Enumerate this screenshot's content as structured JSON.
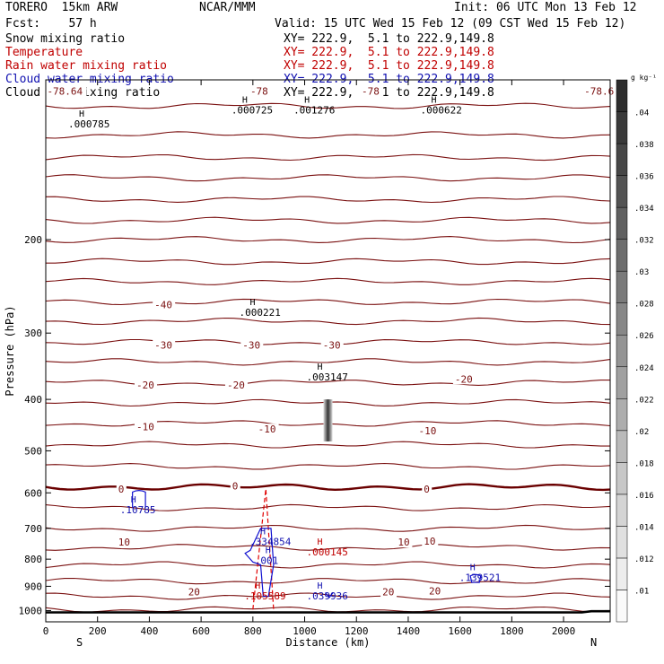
{
  "header": {
    "model": "TORERO  15km ARW",
    "org": "NCAR/MMM",
    "init": "Init: 06 UTC Mon 13 Feb 12",
    "fcst": "Fcst:    57 h",
    "valid": "Valid: 15 UTC Wed 15 Feb 12 (09 CST Wed 15 Feb 12)"
  },
  "legend": [
    {
      "label": "Snow mixing ratio",
      "xy": "XY= 222.9,  5.1 to 222.9,149.8",
      "color": "#000000"
    },
    {
      "label": "Temperature",
      "xy": "XY= 222.9,  5.1 to 222.9,149.8",
      "color": "#c00000"
    },
    {
      "label": "Rain water mixing ratio",
      "xy": "XY= 222.9,  5.1 to 222.9,149.8",
      "color": "#c00000"
    },
    {
      "label": "Cloud water mixing ratio",
      "xy": "XY= 222.9,  5.1 to 222.9,149.8",
      "color": "#1010b0"
    },
    {
      "label": "Cloud ice mixing ratio",
      "xy": "XY= 222.9,  5.1 to 222.9,149.8",
      "color": "#000000"
    }
  ],
  "chart_data": {
    "type": "cross-section",
    "xlabel": "Distance (km)",
    "ylabel": "Pressure (hPa)",
    "xlim": [
      0,
      2180
    ],
    "ylim": [
      1050,
      100
    ],
    "x_ticks": [
      0,
      200,
      400,
      600,
      800,
      1000,
      1200,
      1400,
      1600,
      1800,
      2000
    ],
    "y_ticks": [
      200,
      300,
      400,
      500,
      600,
      700,
      800,
      900,
      1000
    ],
    "endpoints": {
      "left": "S",
      "right": "N"
    },
    "colorbar": {
      "units": "g kg⁻¹",
      "ticks": [
        ".01",
        ".012",
        ".014",
        ".016",
        ".018",
        ".02",
        ".022",
        ".024",
        ".026",
        ".028",
        ".03",
        ".032",
        ".034",
        ".036",
        ".038",
        ".04"
      ]
    },
    "temperature_isotherm_labels": [
      {
        "value": "-78.6",
        "x": 2080,
        "p": 105
      },
      {
        "value": "-78",
        "x": 790,
        "p": 105
      },
      {
        "value": "-78",
        "x": 1220,
        "p": 105
      },
      {
        "value": "-78.64",
        "x": 5,
        "p": 105
      },
      {
        "value": "-40",
        "x": 420,
        "p": 265
      },
      {
        "value": "-30",
        "x": 420,
        "p": 316
      },
      {
        "value": "-30",
        "x": 760,
        "p": 316
      },
      {
        "value": "-30",
        "x": 1070,
        "p": 316
      },
      {
        "value": "-20",
        "x": 350,
        "p": 376
      },
      {
        "value": "-20",
        "x": 700,
        "p": 376
      },
      {
        "value": "-20",
        "x": 1580,
        "p": 366
      },
      {
        "value": "-10",
        "x": 350,
        "p": 450
      },
      {
        "value": "-10",
        "x": 820,
        "p": 455
      },
      {
        "value": "-10",
        "x": 1440,
        "p": 458
      },
      {
        "value": "0",
        "x": 280,
        "p": 590
      },
      {
        "value": "0",
        "x": 720,
        "p": 582
      },
      {
        "value": "0",
        "x": 1460,
        "p": 590
      },
      {
        "value": "10",
        "x": 280,
        "p": 743
      },
      {
        "value": "10",
        "x": 1360,
        "p": 743
      },
      {
        "value": "10",
        "x": 1460,
        "p": 740
      },
      {
        "value": "20",
        "x": 550,
        "p": 922
      },
      {
        "value": "20",
        "x": 1300,
        "p": 922
      },
      {
        "value": "20",
        "x": 1480,
        "p": 918
      }
    ],
    "maxima": [
      {
        "label": ".000785",
        "x": 170,
        "p": 120,
        "color": "#000000"
      },
      {
        "label": ".000725",
        "x": 800,
        "p": 113,
        "color": "#000000"
      },
      {
        "label": ".001276",
        "x": 1040,
        "p": 113,
        "color": "#000000"
      },
      {
        "label": ".000622",
        "x": 1530,
        "p": 113,
        "color": "#000000"
      },
      {
        "label": ".000221",
        "x": 830,
        "p": 272,
        "color": "#000000"
      },
      {
        "label": ".003147",
        "x": 1090,
        "p": 360,
        "color": "#000000"
      },
      {
        "label": ".10785",
        "x": 370,
        "p": 640,
        "color": "#1010b0"
      },
      {
        "label": ".334854",
        "x": 870,
        "p": 735,
        "color": "#1010b0"
      },
      {
        "label": ".001",
        "x": 890,
        "p": 798,
        "color": "#1010b0"
      },
      {
        "label": ".000145",
        "x": 1090,
        "p": 769,
        "color": "#c00000"
      },
      {
        "label": ".139521",
        "x": 1680,
        "p": 860,
        "color": "#1010b0"
      },
      {
        "label": ".105589",
        "x": 850,
        "p": 930,
        "color": "#c00000"
      },
      {
        "label": ".039936",
        "x": 1090,
        "p": 930,
        "color": "#1010b0"
      }
    ]
  }
}
